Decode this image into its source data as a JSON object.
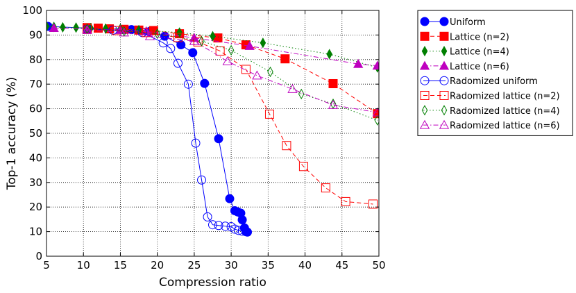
{
  "chart_data": {
    "type": "line",
    "title": "",
    "xlabel": "Compression ratio",
    "ylabel": "Top-1 accuracy (%)",
    "xlim": [
      5,
      50
    ],
    "ylim": [
      0,
      100
    ],
    "xticks": [
      5,
      10,
      15,
      20,
      25,
      30,
      35,
      40,
      45,
      50
    ],
    "yticks": [
      0,
      10,
      20,
      30,
      40,
      50,
      60,
      70,
      80,
      90,
      100
    ],
    "grid": true,
    "legend_position": "outside-right",
    "series": [
      {
        "name": "Uniform",
        "color": "#0000ff",
        "marker": "circle",
        "filled": true,
        "line": "solid",
        "points": [
          [
            5.2,
            93.5
          ],
          [
            10.5,
            92.8
          ],
          [
            13.5,
            92.5
          ],
          [
            16.5,
            92.2
          ],
          [
            19,
            91.5
          ],
          [
            21,
            89.5
          ],
          [
            23.2,
            86
          ],
          [
            24.8,
            82.8
          ],
          [
            26.4,
            70.3
          ],
          [
            28.3,
            47.8
          ],
          [
            29.8,
            23.4
          ],
          [
            30.5,
            18.5
          ],
          [
            30.9,
            18
          ],
          [
            31.3,
            17.5
          ],
          [
            31.5,
            14.8
          ],
          [
            31.8,
            11.5
          ],
          [
            32,
            10
          ],
          [
            32.2,
            9.8
          ]
        ]
      },
      {
        "name": "Lattice (n=2)",
        "color": "#ff0000",
        "marker": "square",
        "filled": true,
        "line": "dashed",
        "points": [
          [
            10.5,
            93
          ],
          [
            12,
            92.8
          ],
          [
            13.5,
            92.5
          ],
          [
            15.5,
            92.3
          ],
          [
            17.5,
            92
          ],
          [
            19.5,
            91.8
          ],
          [
            23,
            90.5
          ],
          [
            28.2,
            88.8
          ],
          [
            32,
            86
          ],
          [
            37.3,
            80.3
          ],
          [
            43.8,
            70.2
          ],
          [
            49.8,
            58
          ]
        ]
      },
      {
        "name": "Lattice (n=4)",
        "color": "#007f00",
        "marker": "diamond",
        "filled": true,
        "line": "dotted",
        "points": [
          [
            5,
            93.5
          ],
          [
            6,
            93.3
          ],
          [
            7.2,
            93.1
          ],
          [
            9,
            93
          ],
          [
            11,
            92.8
          ],
          [
            13,
            92.6
          ],
          [
            15,
            92.5
          ],
          [
            17.5,
            92
          ],
          [
            23,
            91
          ],
          [
            27.5,
            89.5
          ],
          [
            34.3,
            86.8
          ],
          [
            43.3,
            82.2
          ],
          [
            49.8,
            76.8
          ]
        ]
      },
      {
        "name": "Lattice (n=6)",
        "color": "#bf00bf",
        "marker": "triangle",
        "filled": true,
        "line": "dashdot",
        "points": [
          [
            6,
            92.8
          ],
          [
            10.5,
            92.5
          ],
          [
            15,
            92
          ],
          [
            18.5,
            91.5
          ],
          [
            25,
            88.8
          ],
          [
            32.5,
            85.5
          ],
          [
            47.2,
            78.2
          ],
          [
            49.8,
            77.5
          ]
        ]
      },
      {
        "name": "Radomized uniform",
        "color": "#0000ff",
        "marker": "circle",
        "filled": false,
        "line": "solid",
        "points": [
          [
            10.5,
            92.5
          ],
          [
            14,
            92
          ],
          [
            18,
            91
          ],
          [
            20.8,
            86.8
          ],
          [
            21.8,
            84.5
          ],
          [
            22.8,
            78.5
          ],
          [
            24.2,
            70
          ],
          [
            25.2,
            46
          ],
          [
            26,
            31
          ],
          [
            26.8,
            16
          ],
          [
            27.5,
            12.8
          ],
          [
            28.3,
            12.5
          ],
          [
            29.2,
            12.2
          ],
          [
            30,
            12
          ],
          [
            30.5,
            11
          ],
          [
            31,
            10.5
          ],
          [
            31.5,
            10.2
          ]
        ]
      },
      {
        "name": "Radomized lattice (n=2)",
        "color": "#ff0000",
        "marker": "square",
        "filled": false,
        "line": "dashed",
        "points": [
          [
            10.5,
            92.5
          ],
          [
            14.5,
            91.8
          ],
          [
            18.5,
            91
          ],
          [
            22.8,
            89
          ],
          [
            25.5,
            87.2
          ],
          [
            28.5,
            83.5
          ],
          [
            32,
            76
          ],
          [
            35.2,
            57.8
          ],
          [
            37.5,
            45
          ],
          [
            39.8,
            36.5
          ],
          [
            42.8,
            27.8
          ],
          [
            45.5,
            22.2
          ],
          [
            49.2,
            21.2
          ]
        ]
      },
      {
        "name": "Radomized lattice (n=4)",
        "color": "#007f00",
        "marker": "diamond",
        "filled": false,
        "line": "dotted",
        "points": [
          [
            10.5,
            92.5
          ],
          [
            15.5,
            91.5
          ],
          [
            20,
            90.5
          ],
          [
            26,
            87.5
          ],
          [
            30,
            83.8
          ],
          [
            35.3,
            75
          ],
          [
            39.5,
            66
          ],
          [
            43.8,
            62
          ],
          [
            49.8,
            55.3
          ]
        ]
      },
      {
        "name": "Radomized lattice (n=6)",
        "color": "#bf00bf",
        "marker": "triangle",
        "filled": false,
        "line": "dashdot",
        "points": [
          [
            10.5,
            92
          ],
          [
            15.5,
            91
          ],
          [
            19,
            89.5
          ],
          [
            25,
            87.5
          ],
          [
            29.5,
            79.3
          ],
          [
            33.5,
            73.5
          ],
          [
            38.3,
            68
          ],
          [
            43.8,
            61.5
          ],
          [
            49.8,
            58.5
          ]
        ]
      }
    ]
  }
}
